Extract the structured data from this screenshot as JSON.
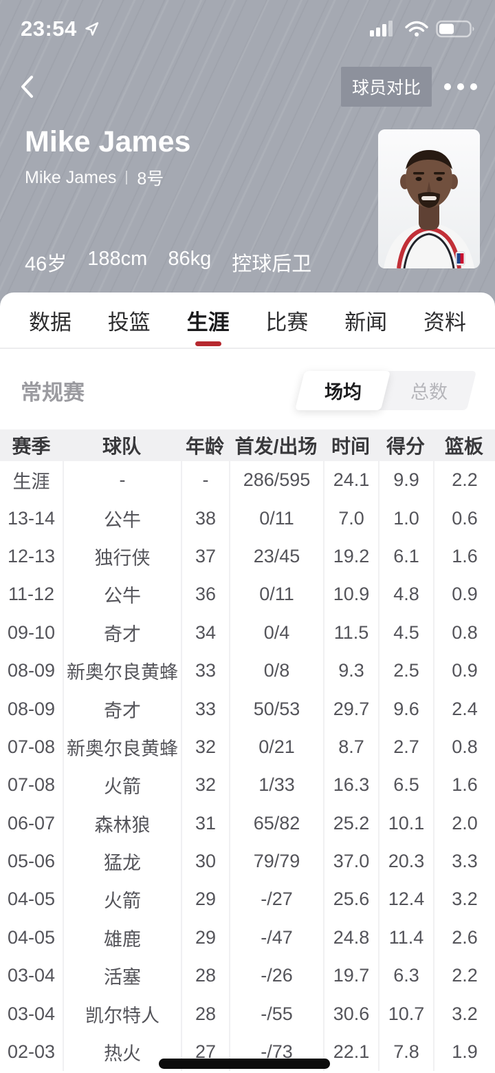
{
  "status_bar": {
    "time": "23:54",
    "location_icon": "navigation-arrow",
    "signal_icon": "cellular-signal-3-of-4",
    "wifi_icon": "wifi",
    "battery_icon": "battery-45-percent"
  },
  "nav": {
    "back_icon": "chevron-left",
    "compare_button": "球员对比",
    "more_icon": "ellipsis-dots"
  },
  "player": {
    "name": "Mike James",
    "alt_name": "Mike James",
    "jersey_number": "8号",
    "age": "46岁",
    "height": "188cm",
    "weight": "86kg",
    "position": "控球后卫",
    "photo_icon": "player-headshot"
  },
  "tabs": [
    {
      "label": "数据",
      "active": false
    },
    {
      "label": "投篮",
      "active": false
    },
    {
      "label": "生涯",
      "active": true
    },
    {
      "label": "比赛",
      "active": false
    },
    {
      "label": "新闻",
      "active": false
    },
    {
      "label": "资料",
      "active": false
    }
  ],
  "section": {
    "title": "常规赛",
    "toggle": [
      {
        "label": "场均",
        "active": true
      },
      {
        "label": "总数",
        "active": false
      }
    ]
  },
  "table": {
    "columns": [
      "赛季",
      "球队",
      "年龄",
      "首发/出场",
      "时间",
      "得分",
      "篮板"
    ],
    "rows": [
      [
        "生涯",
        "-",
        "-",
        "286/595",
        "24.1",
        "9.9",
        "2.2"
      ],
      [
        "13-14",
        "公牛",
        "38",
        "0/11",
        "7.0",
        "1.0",
        "0.6"
      ],
      [
        "12-13",
        "独行侠",
        "37",
        "23/45",
        "19.2",
        "6.1",
        "1.6"
      ],
      [
        "11-12",
        "公牛",
        "36",
        "0/11",
        "10.9",
        "4.8",
        "0.9"
      ],
      [
        "09-10",
        "奇才",
        "34",
        "0/4",
        "11.5",
        "4.5",
        "0.8"
      ],
      [
        "08-09",
        "新奥尔良黄蜂",
        "33",
        "0/8",
        "9.3",
        "2.5",
        "0.9"
      ],
      [
        "08-09",
        "奇才",
        "33",
        "50/53",
        "29.7",
        "9.6",
        "2.4"
      ],
      [
        "07-08",
        "新奥尔良黄蜂",
        "32",
        "0/21",
        "8.7",
        "2.7",
        "0.8"
      ],
      [
        "07-08",
        "火箭",
        "32",
        "1/33",
        "16.3",
        "6.5",
        "1.6"
      ],
      [
        "06-07",
        "森林狼",
        "31",
        "65/82",
        "25.2",
        "10.1",
        "2.0"
      ],
      [
        "05-06",
        "猛龙",
        "30",
        "79/79",
        "37.0",
        "20.3",
        "3.3"
      ],
      [
        "04-05",
        "火箭",
        "29",
        "-/27",
        "25.6",
        "12.4",
        "3.2"
      ],
      [
        "04-05",
        "雄鹿",
        "29",
        "-/47",
        "24.8",
        "11.4",
        "2.6"
      ],
      [
        "03-04",
        "活塞",
        "28",
        "-/26",
        "19.7",
        "6.3",
        "2.2"
      ],
      [
        "03-04",
        "凯尔特人",
        "28",
        "-/55",
        "30.6",
        "10.7",
        "3.2"
      ],
      [
        "02-03",
        "热火",
        "27",
        "-/73",
        "22.1",
        "7.8",
        "1.9"
      ]
    ]
  },
  "colors": {
    "accent_red": "#b6292f",
    "hero_background": "#a5a9b2",
    "compare_button_background": "#8d919c",
    "table_header_background": "#f0f0f2"
  }
}
